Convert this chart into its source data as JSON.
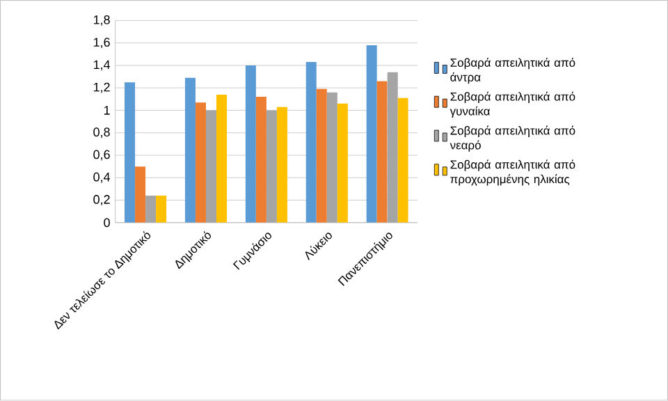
{
  "chart_data": {
    "type": "bar",
    "categories": [
      "Δεν τελείωσε το Δημοτικό",
      "Δημοτικό",
      "Γυμνάσιο",
      "Λύκειο",
      "Πανεπιστήμιο"
    ],
    "series": [
      {
        "name": "Σοβαρά απειλητικά από άντρα",
        "color": "#5b9bd5",
        "values": [
          1.25,
          1.29,
          1.4,
          1.43,
          1.58
        ]
      },
      {
        "name": "Σοβαρά απειλητικά από γυναίκα",
        "color": "#ed7d31",
        "values": [
          0.5,
          1.07,
          1.12,
          1.19,
          1.26
        ]
      },
      {
        "name": "Σοβαρά απειλητικά από νεαρό",
        "color": "#a5a5a5",
        "values": [
          0.24,
          1.0,
          1.0,
          1.16,
          1.34
        ]
      },
      {
        "name": "Σοβαρά απειλητικά από προχωρημένης ηλικίας",
        "color": "#ffc000",
        "values": [
          0.24,
          1.14,
          1.03,
          1.06,
          1.11
        ]
      }
    ],
    "ylim": [
      0,
      1.8
    ],
    "yticks": [
      0,
      {
        "value": 0.2,
        "label": "0,2"
      },
      {
        "value": 0.4,
        "label": "0,4"
      },
      {
        "value": 0.6,
        "label": "0,6"
      },
      {
        "value": 0.8,
        "label": "0,8"
      },
      1,
      {
        "value": 1.2,
        "label": "1,2"
      },
      {
        "value": 1.4,
        "label": "1,4"
      },
      {
        "value": 1.6,
        "label": "1,6"
      },
      {
        "value": 1.8,
        "label": "1,8"
      }
    ],
    "grid": "y",
    "legend": "right"
  }
}
